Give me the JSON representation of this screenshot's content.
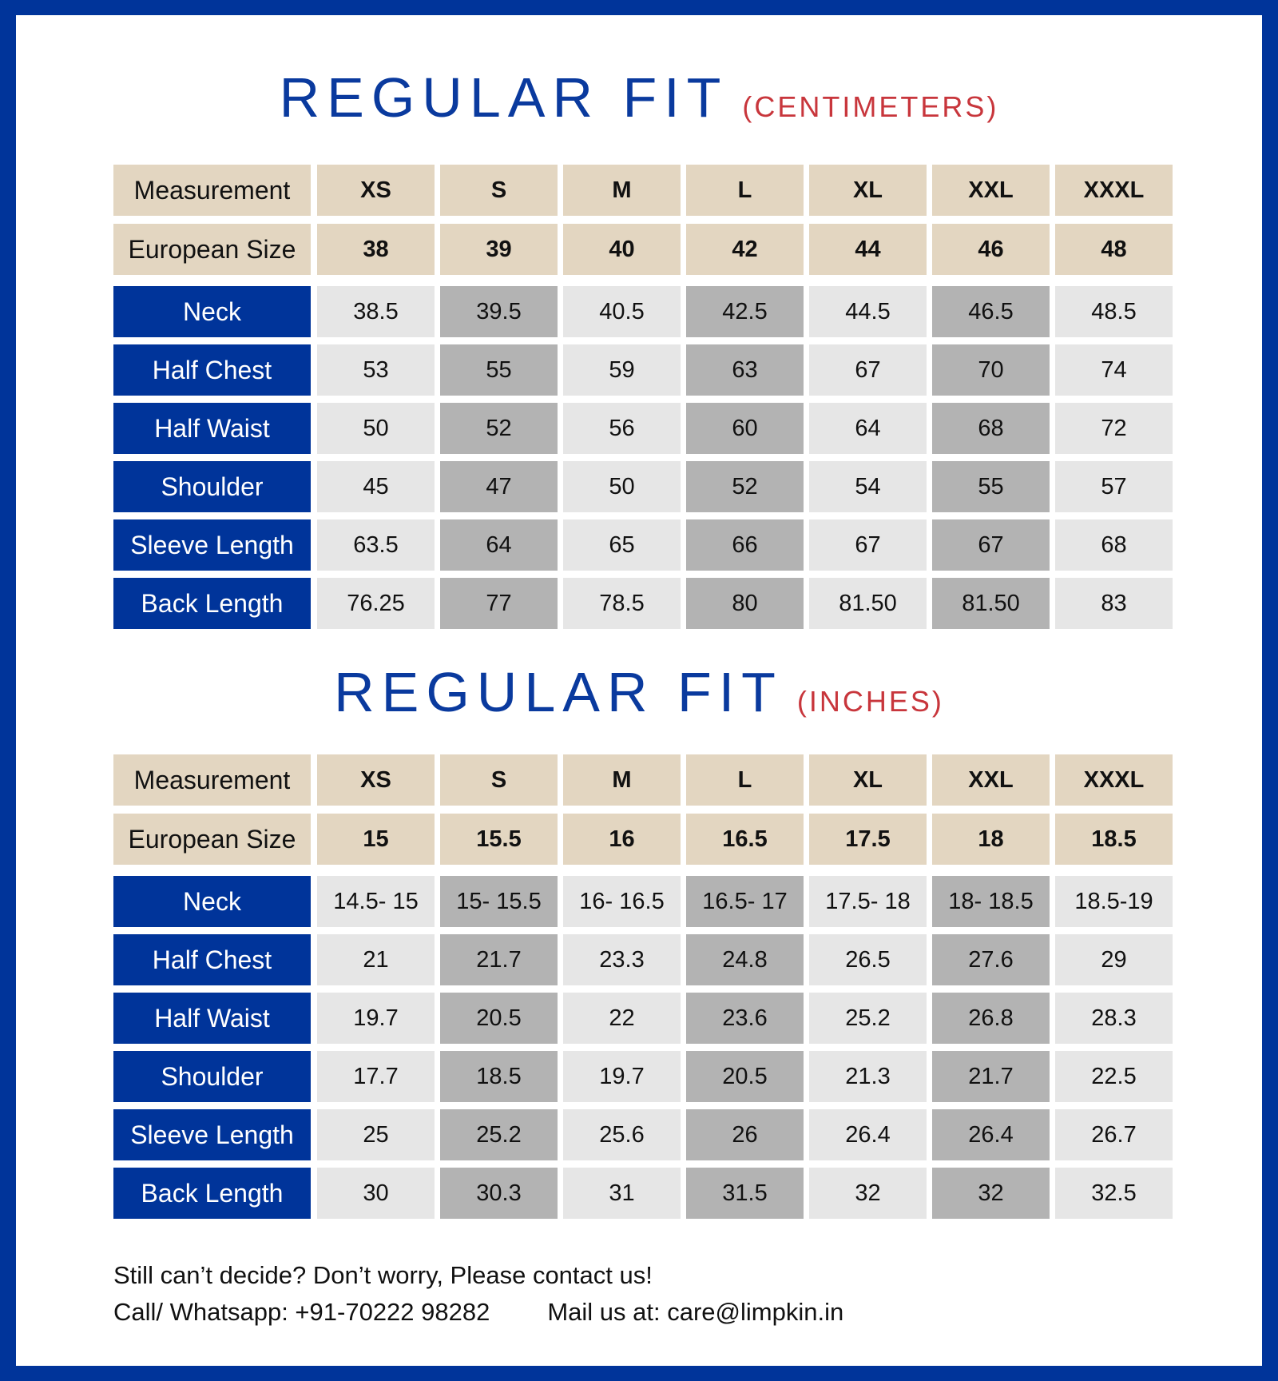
{
  "colors": {
    "border": "#00349a",
    "title": "#0a3a9e",
    "subtitle": "#c8363c",
    "header_bg": "#e3d6c1",
    "label_bg": "#00349a",
    "cell_light": "#e6e6e6",
    "cell_dark": "#b3b3b3"
  },
  "tables": [
    {
      "title": "REGULAR FIT",
      "unit": "(CENTIMETERS)",
      "header": [
        "Measurement",
        "XS",
        "S",
        "M",
        "L",
        "XL",
        "XXL",
        "XXXL"
      ],
      "euro": [
        "European Size",
        "38",
        "39",
        "40",
        "42",
        "44",
        "46",
        "48"
      ],
      "rows": [
        [
          "Neck",
          "38.5",
          "39.5",
          "40.5",
          "42.5",
          "44.5",
          "46.5",
          "48.5"
        ],
        [
          "Half Chest",
          "53",
          "55",
          "59",
          "63",
          "67",
          "70",
          "74"
        ],
        [
          "Half Waist",
          "50",
          "52",
          "56",
          "60",
          "64",
          "68",
          "72"
        ],
        [
          "Shoulder",
          "45",
          "47",
          "50",
          "52",
          "54",
          "55",
          "57"
        ],
        [
          "Sleeve Length",
          "63.5",
          "64",
          "65",
          "66",
          "67",
          "67",
          "68"
        ],
        [
          "Back Length",
          "76.25",
          "77",
          "78.5",
          "80",
          "81.50",
          "81.50",
          "83"
        ]
      ]
    },
    {
      "title": "REGULAR FIT",
      "unit": "(INCHES)",
      "header": [
        "Measurement",
        "XS",
        "S",
        "M",
        "L",
        "XL",
        "XXL",
        "XXXL"
      ],
      "euro": [
        "European Size",
        "15",
        "15.5",
        "16",
        "16.5",
        "17.5",
        "18",
        "18.5"
      ],
      "rows": [
        [
          "Neck",
          "14.5- 15",
          "15- 15.5",
          "16- 16.5",
          "16.5- 17",
          "17.5- 18",
          "18- 18.5",
          "18.5-19"
        ],
        [
          "Half Chest",
          "21",
          "21.7",
          "23.3",
          "24.8",
          "26.5",
          "27.6",
          "29"
        ],
        [
          "Half Waist",
          "19.7",
          "20.5",
          "22",
          "23.6",
          "25.2",
          "26.8",
          "28.3"
        ],
        [
          "Shoulder",
          "17.7",
          "18.5",
          "19.7",
          "20.5",
          "21.3",
          "21.7",
          "22.5"
        ],
        [
          "Sleeve Length",
          "25",
          "25.2",
          "25.6",
          "26",
          "26.4",
          "26.4",
          "26.7"
        ],
        [
          "Back Length",
          "30",
          "30.3",
          "31",
          "31.5",
          "32",
          "32",
          "32.5"
        ]
      ]
    }
  ],
  "footer": {
    "line1": "Still can’t decide? Don’t worry, Please contact us!",
    "phone": "Call/ Whatsapp: +91-70222 98282",
    "mail": "Mail us at: care@limpkin.in"
  }
}
